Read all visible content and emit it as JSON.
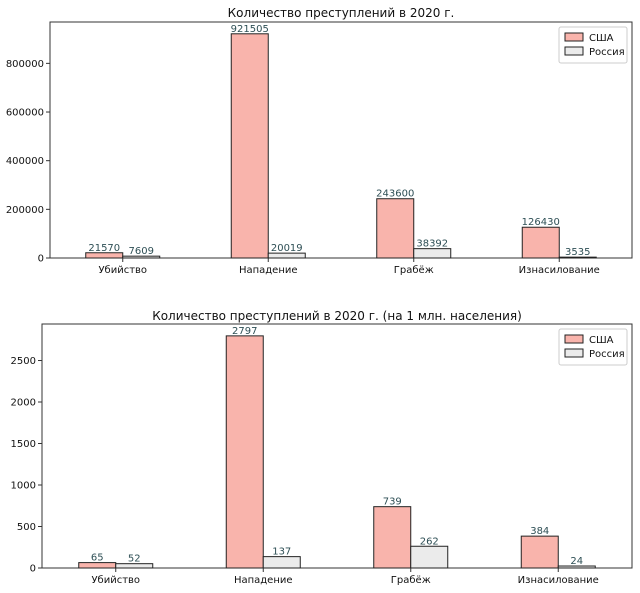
{
  "chart_data": [
    {
      "type": "bar",
      "title": "Количество преступлений в 2020 г.",
      "categories": [
        "Убийство",
        "Нападение",
        "Грабёж",
        "Изнасилование"
      ],
      "series": [
        {
          "name": "США",
          "values": [
            21570,
            921505,
            243600,
            126430
          ]
        },
        {
          "name": "Россия",
          "values": [
            7609,
            20019,
            38392,
            3535
          ]
        }
      ],
      "ylim": [
        0,
        970000
      ],
      "yticks": [
        0,
        200000,
        400000,
        600000,
        800000
      ],
      "legend": "top-right",
      "grid": false
    },
    {
      "type": "bar",
      "title": "Количество преступлений в 2020 г. (на 1 млн. населения)",
      "categories": [
        "Убийство",
        "Нападение",
        "Грабёж",
        "Изнасилование"
      ],
      "series": [
        {
          "name": "США",
          "values": [
            65,
            2797,
            739,
            384
          ]
        },
        {
          "name": "Россия",
          "values": [
            52,
            137,
            262,
            24
          ]
        }
      ],
      "ylim": [
        0,
        2940
      ],
      "yticks": [
        0,
        500,
        1000,
        1500,
        2000,
        2500
      ],
      "legend": "top-right",
      "grid": false
    }
  ],
  "colors": {
    "usa_fill": "#f9b4ac",
    "russia_fill": "#ebebeb",
    "edge": "#222222",
    "value_label": "#2e4f55"
  }
}
